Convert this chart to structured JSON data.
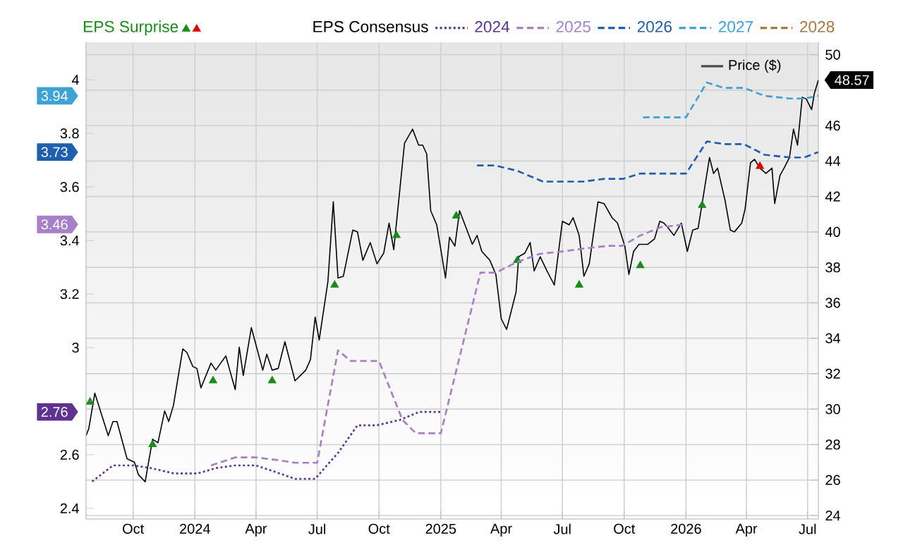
{
  "chart_data": {
    "type": "line",
    "legend_title": "EPS Consensus",
    "legend": "top",
    "grid": true,
    "xlim": [
      "2023-07-23",
      "2026-07-17"
    ],
    "xticks": [
      {
        "value": "2023-10-01",
        "label": "Oct"
      },
      {
        "value": "2024-01-01",
        "label": "2024"
      },
      {
        "value": "2024-04-01",
        "label": "Apr"
      },
      {
        "value": "2024-07-01",
        "label": "Jul"
      },
      {
        "value": "2024-10-01",
        "label": "Oct"
      },
      {
        "value": "2025-01-01",
        "label": "2025"
      },
      {
        "value": "2025-04-01",
        "label": "Apr"
      },
      {
        "value": "2025-07-01",
        "label": "Jul"
      },
      {
        "value": "2025-10-01",
        "label": "Oct"
      },
      {
        "value": "2026-01-01",
        "label": "2026"
      },
      {
        "value": "2026-04-01",
        "label": "Apr"
      },
      {
        "value": "2026-07-01",
        "label": "Jul"
      }
    ],
    "ylim": [
      2.36,
      4.14
    ],
    "yticks": [
      2.4,
      2.6,
      {
        "value": 2.8,
        "label": null
      },
      3,
      3.2,
      3.4,
      3.6,
      3.8,
      4
    ],
    "annotations": [
      "2.76",
      "3.46",
      "3.73",
      "3.94"
    ],
    "y2lim": [
      23.8,
      50.7
    ],
    "y2ticks": [
      24,
      26,
      28,
      30,
      32,
      34,
      36,
      38,
      40,
      42,
      44,
      46,
      {
        "value": 48,
        "label": null
      },
      50
    ],
    "series": [
      {
        "name": "EPS Surprise",
        "type": "scatter",
        "axis": "y2",
        "marker": "triangle",
        "color": "#1a8a1a",
        "x": [
          "2023-07-29",
          "2023-10-30",
          "2024-01-28",
          "2024-04-25",
          "2024-07-27",
          "2024-10-27",
          "2025-01-24",
          "2025-04-25",
          "2025-07-26",
          "2025-10-25",
          "2026-01-25"
        ],
        "values": [
          30.4,
          28.0,
          31.6,
          31.6,
          37.0,
          39.8,
          40.9,
          38.4,
          37.0,
          38.1,
          41.5
        ]
      },
      {
        "type": "scatter",
        "axis": "y2",
        "marker": "triangle",
        "color": "#e00000",
        "x": [
          "2026-04-21"
        ],
        "values": [
          43.7
        ]
      },
      {
        "name": "2024",
        "line_style": "dotted",
        "color": "#5e3390",
        "x": [
          "2023-08-01",
          "2023-09-01",
          "2023-10-01",
          "2023-10-28",
          "2023-12-01",
          "2024-01-05",
          "2024-02-01",
          "2024-03-01",
          "2024-04-01",
          "2024-04-25",
          "2024-05-29",
          "2024-06-28",
          "2024-08-02",
          "2024-08-30",
          "2024-09-28",
          "2024-11-01",
          "2024-11-30",
          "2025-01-01"
        ],
        "values": [
          2.5,
          2.56,
          2.56,
          2.55,
          2.53,
          2.53,
          2.55,
          2.56,
          2.56,
          2.54,
          2.51,
          2.51,
          2.61,
          2.71,
          2.71,
          2.73,
          2.76,
          2.76
        ]
      },
      {
        "name": "2025",
        "line_style": "dashed",
        "color": "#a780c7",
        "x": [
          "2024-01-25",
          "2024-03-01",
          "2024-04-01",
          "2024-05-03",
          "2024-05-29",
          "2024-07-01",
          "2024-08-01",
          "2024-08-20",
          "2024-10-01",
          "2024-11-05",
          "2024-11-25",
          "2025-01-01",
          "2025-03-01",
          "2025-03-24",
          "2025-04-25",
          "2025-05-28",
          "2025-07-04",
          "2025-08-02",
          "2025-09-07",
          "2025-09-28",
          "2025-10-26",
          "2025-11-25",
          "2025-12-31"
        ],
        "values": [
          2.56,
          2.59,
          2.59,
          2.58,
          2.57,
          2.57,
          2.99,
          2.95,
          2.95,
          2.73,
          2.68,
          2.68,
          3.28,
          3.28,
          3.32,
          3.35,
          3.36,
          3.37,
          3.38,
          3.38,
          3.42,
          3.45,
          3.46
        ]
      },
      {
        "name": "2026",
        "line_style": "dashed",
        "color": "#1f5fad",
        "x": [
          "2025-02-24",
          "2025-03-23",
          "2025-04-25",
          "2025-06-02",
          "2025-08-01",
          "2025-09-01",
          "2025-09-29",
          "2025-10-25",
          "2026-01-01",
          "2026-02-01",
          "2026-02-26",
          "2026-03-28",
          "2026-04-28",
          "2026-06-05",
          "2026-06-26",
          "2026-07-17"
        ],
        "values": [
          3.68,
          3.68,
          3.66,
          3.62,
          3.62,
          3.63,
          3.63,
          3.65,
          3.65,
          3.77,
          3.76,
          3.76,
          3.72,
          3.71,
          3.71,
          3.73
        ]
      },
      {
        "name": "2027",
        "line_style": "dashed",
        "color": "#3ea3d3",
        "x": [
          "2025-10-29",
          "2026-01-01",
          "2026-02-01",
          "2026-02-26",
          "2026-03-28",
          "2026-04-28",
          "2026-06-05",
          "2026-06-26",
          "2026-07-17"
        ],
        "values": [
          3.86,
          3.86,
          3.99,
          3.97,
          3.97,
          3.94,
          3.93,
          3.93,
          3.94
        ]
      },
      {
        "name": "2028",
        "line_style": "dashed",
        "color": "#a47a40"
      },
      {
        "name": "Price ($)",
        "axis": "y2",
        "line_style": "solid",
        "color": "#000000",
        "value_labels": [
          null,
          null,
          null,
          null,
          null,
          null,
          null,
          null,
          null,
          null,
          null,
          null,
          null,
          null,
          null,
          null,
          null,
          null,
          null,
          null,
          null,
          null,
          null,
          null,
          null,
          null,
          null,
          null,
          null,
          null,
          null,
          null,
          null,
          null,
          null,
          null,
          null,
          null,
          null,
          null,
          null,
          null,
          null,
          null,
          null,
          null,
          null,
          null,
          null,
          null,
          null,
          null,
          null,
          null,
          null,
          null,
          null,
          null,
          null,
          null,
          null,
          null,
          null,
          null,
          null,
          null,
          null,
          null,
          null,
          null,
          null,
          null,
          null,
          null,
          null,
          null,
          null,
          null,
          null,
          null,
          null,
          null,
          null,
          null,
          null,
          null,
          null,
          null,
          null,
          null,
          null,
          null,
          null,
          null,
          null,
          null,
          null,
          null,
          null,
          null,
          null,
          null,
          null,
          null,
          null,
          null,
          null,
          null,
          null,
          null,
          null,
          null,
          null,
          null,
          null,
          null,
          null,
          null,
          null,
          null,
          null,
          null,
          null,
          null,
          "48.57"
        ],
        "x": [
          "2023-07-23",
          "2023-07-27",
          "2023-08-05",
          "2023-08-25",
          "2023-09-01",
          "2023-09-07",
          "2023-09-22",
          "2023-10-03",
          "2023-10-09",
          "2023-10-19",
          "2023-10-30",
          "2023-11-07",
          "2023-11-17",
          "2023-11-23",
          "2023-11-30",
          "2023-12-14",
          "2023-12-20",
          "2023-12-29",
          "2024-01-04",
          "2024-01-10",
          "2024-01-25",
          "2024-02-01",
          "2024-02-16",
          "2024-03-01",
          "2024-03-07",
          "2024-03-13",
          "2024-03-25",
          "2024-04-11",
          "2024-04-17",
          "2024-04-25",
          "2024-05-04",
          "2024-05-14",
          "2024-05-29",
          "2024-06-14",
          "2024-06-21",
          "2024-06-28",
          "2024-07-04",
          "2024-07-17",
          "2024-07-25",
          "2024-08-01",
          "2024-08-09",
          "2024-08-23",
          "2024-08-30",
          "2024-09-07",
          "2024-09-18",
          "2024-09-28",
          "2024-10-08",
          "2024-10-16",
          "2024-10-23",
          "2024-11-08",
          "2024-11-20",
          "2024-11-29",
          "2024-12-05",
          "2024-12-11",
          "2024-12-17",
          "2024-12-26",
          "2025-01-08",
          "2025-01-14",
          "2025-01-22",
          "2025-01-29",
          "2025-02-07",
          "2025-02-17",
          "2025-02-24",
          "2025-03-03",
          "2025-03-15",
          "2025-03-24",
          "2025-04-01",
          "2025-04-09",
          "2025-04-23",
          "2025-04-27",
          "2025-05-06",
          "2025-05-14",
          "2025-05-20",
          "2025-05-29",
          "2025-06-08",
          "2025-06-19",
          "2025-07-01",
          "2025-07-11",
          "2025-07-17",
          "2025-07-26",
          "2025-08-02",
          "2025-08-10",
          "2025-08-23",
          "2025-09-01",
          "2025-09-13",
          "2025-09-21",
          "2025-10-02",
          "2025-10-08",
          "2025-10-15",
          "2025-10-23",
          "2025-11-05",
          "2025-11-15",
          "2025-11-23",
          "2025-11-29",
          "2025-12-06",
          "2025-12-14",
          "2025-12-25",
          "2026-01-03",
          "2026-01-11",
          "2026-01-19",
          "2026-01-25",
          "2026-02-05",
          "2026-02-11",
          "2026-02-17",
          "2026-02-28",
          "2026-03-08",
          "2026-03-14",
          "2026-03-25",
          "2026-03-30",
          "2026-04-07",
          "2026-04-13",
          "2026-04-21",
          "2026-04-30",
          "2026-05-09",
          "2026-05-13",
          "2026-05-21",
          "2026-05-27",
          "2026-06-04",
          "2026-06-10",
          "2026-06-16",
          "2026-06-23",
          "2026-06-29",
          "2026-07-07",
          "2026-07-11",
          "2026-07-17"
        ],
        "values": [
          28.5,
          28.9,
          30.9,
          28.5,
          29.3,
          29.3,
          27.2,
          27.0,
          26.3,
          25.9,
          28.3,
          28.1,
          29.9,
          29.3,
          30.2,
          33.4,
          33.2,
          32.4,
          32.3,
          31.2,
          32.6,
          32.2,
          33.0,
          31.1,
          33.5,
          31.9,
          34.6,
          32.2,
          33.1,
          32.2,
          32.3,
          33.8,
          31.6,
          32.2,
          32.8,
          35.2,
          33.9,
          37.2,
          41.7,
          37.4,
          37.5,
          40.1,
          40.0,
          38.4,
          39.4,
          38.2,
          38.8,
          40.5,
          39.0,
          45.0,
          45.8,
          44.9,
          44.9,
          44.4,
          41.2,
          40.4,
          37.4,
          39.7,
          39.2,
          41.2,
          40.3,
          39.3,
          39.8,
          38.9,
          38.4,
          37.6,
          35.1,
          34.5,
          36.6,
          38.6,
          38.8,
          39.4,
          37.8,
          38.6,
          37.8,
          37.0,
          40.6,
          40.4,
          40.8,
          39.8,
          37.5,
          38.2,
          41.7,
          41.6,
          40.8,
          40.5,
          39.2,
          37.6,
          38.9,
          39.3,
          39.3,
          39.6,
          40.6,
          40.5,
          40.2,
          39.8,
          40.5,
          38.9,
          40.1,
          40.2,
          41.6,
          44.2,
          43.3,
          43.6,
          41.8,
          40.1,
          40.0,
          40.5,
          41.3,
          43.9,
          44.1,
          43.6,
          43.3,
          43.6,
          41.6,
          43.2,
          43.6,
          44.2,
          45.8,
          44.9,
          47.6,
          47.5,
          46.9,
          47.8,
          48.57
        ]
      }
    ]
  }
}
